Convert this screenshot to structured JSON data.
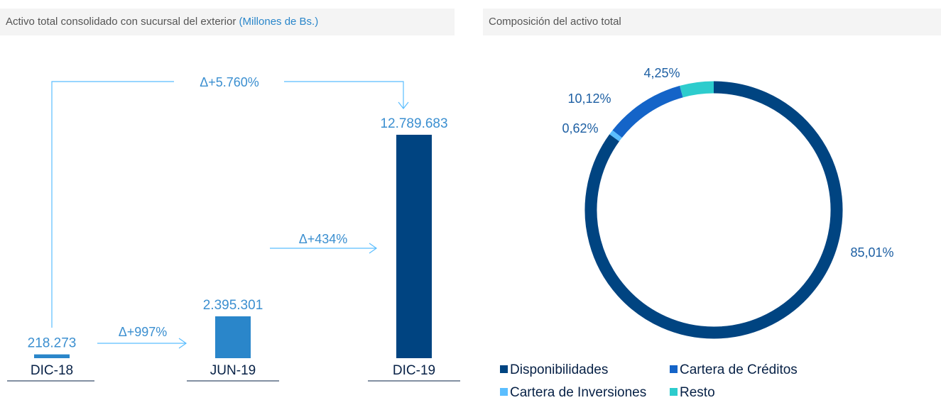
{
  "chart_data": [
    {
      "type": "bar",
      "title": "Activo total consolidado con sucursal del exterior",
      "subtitle": "(Millones de Bs.)",
      "categories": [
        "DIC-18",
        "JUN-19",
        "DIC-19"
      ],
      "values": [
        218273,
        2395301,
        12789683
      ],
      "value_labels": [
        "218.273",
        "2.395.301",
        "12.789.683"
      ],
      "colors": [
        "#2a86ca",
        "#2a86ca",
        "#004481"
      ],
      "annotations": [
        "Δ+5.760%",
        "Δ+997%",
        "Δ+434%"
      ]
    },
    {
      "type": "donut",
      "title": "Composición del activo total",
      "categories": [
        "Disponibilidades",
        "Cartera de Inversiones",
        "Cartera de Créditos",
        "Resto"
      ],
      "values": [
        85.01,
        0.62,
        10.12,
        4.25
      ],
      "value_labels": [
        "85,01%",
        "0,62%",
        "10,12%",
        "4,25%"
      ],
      "colors": [
        "#004481",
        "#5bbeff",
        "#1464c8",
        "#2dcccd"
      ]
    }
  ]
}
